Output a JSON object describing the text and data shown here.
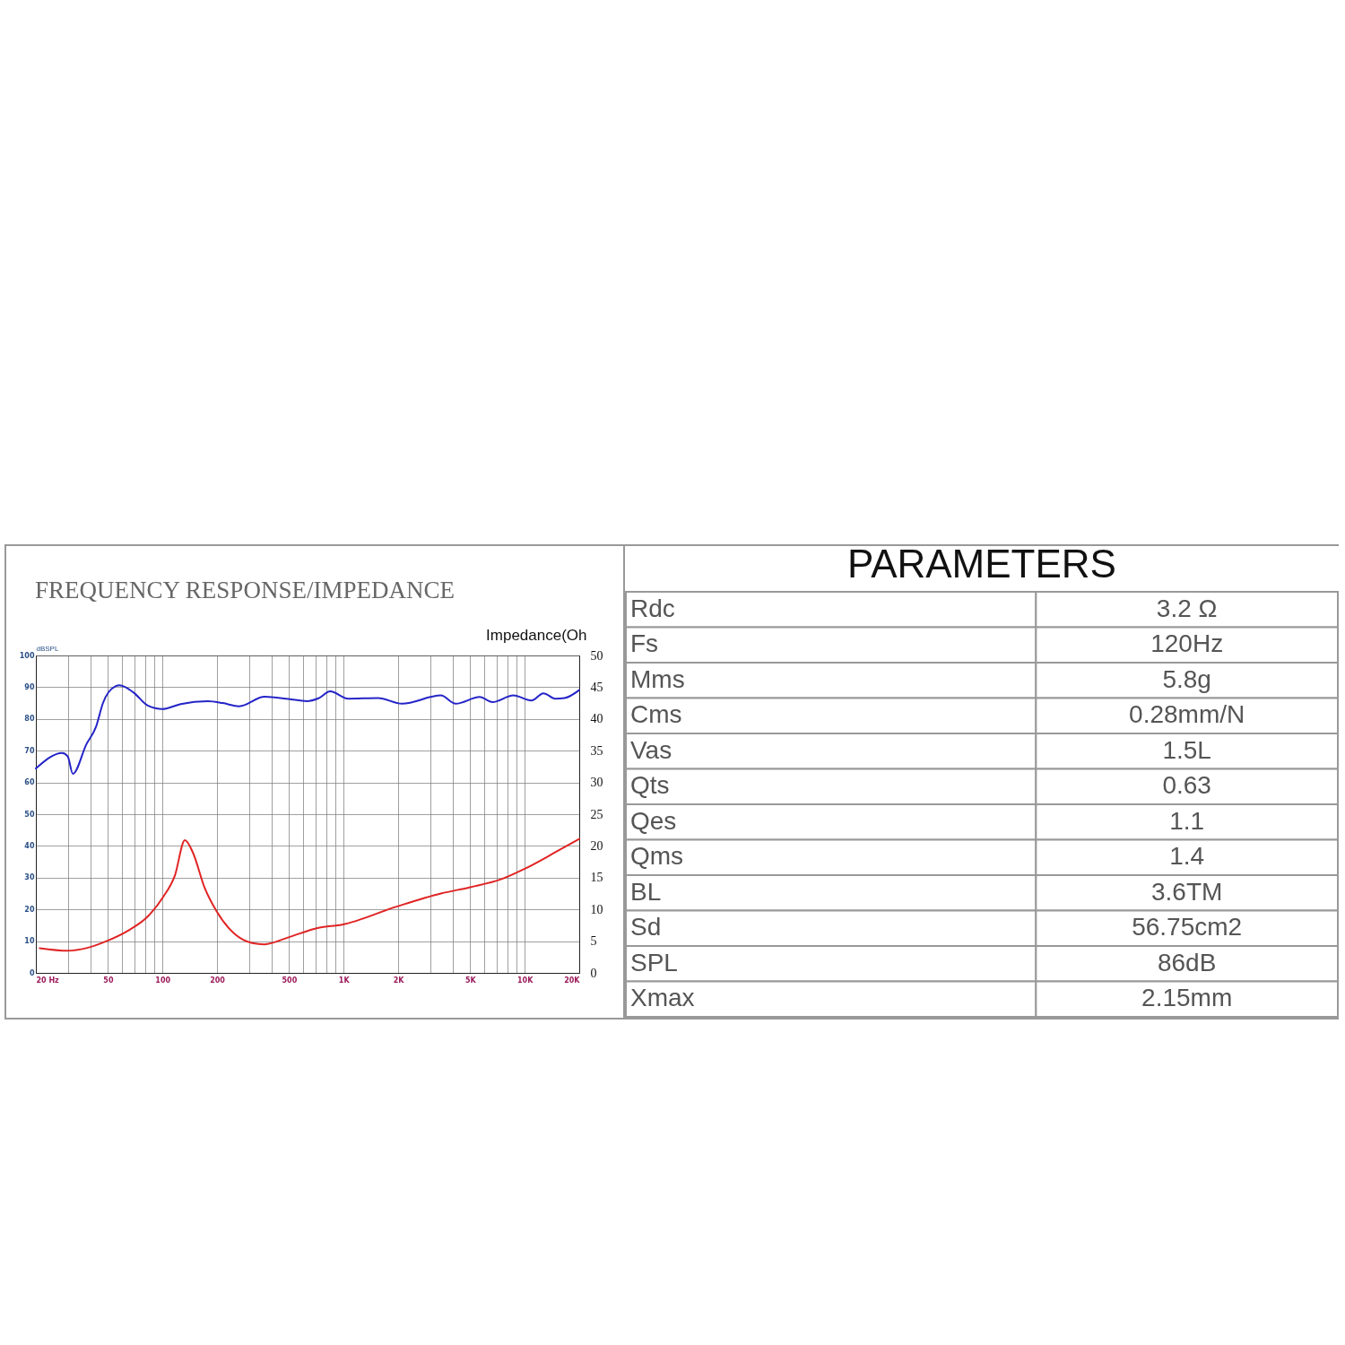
{
  "chart_data": [
    {
      "type": "line",
      "title": "FREQUENCY RESPONSE/IMPEDANCE",
      "ylabel": "dBSPL",
      "y2label": "Impedance(Oh",
      "log": "x",
      "grid": true,
      "xlim": [
        20,
        20000
      ],
      "ylim": [
        0,
        100
      ],
      "y2lim": [
        0,
        50
      ],
      "xticks": [
        {
          "value": 20,
          "label": "20  Hz"
        },
        {
          "value": 30,
          "label": null
        },
        {
          "value": 40,
          "label": null
        },
        50,
        {
          "value": 60,
          "label": null
        },
        {
          "value": 70,
          "label": null
        },
        {
          "value": 80,
          "label": null
        },
        {
          "value": 90,
          "label": null
        },
        100,
        200,
        {
          "value": 300,
          "label": null
        },
        {
          "value": 400,
          "label": null
        },
        500,
        {
          "value": 600,
          "label": null
        },
        {
          "value": 700,
          "label": null
        },
        {
          "value": 800,
          "label": null
        },
        {
          "value": 900,
          "label": null
        },
        {
          "value": 1000,
          "label": "1K"
        },
        {
          "value": 2000,
          "label": "2K"
        },
        {
          "value": 3000,
          "label": null
        },
        {
          "value": 4000,
          "label": null
        },
        {
          "value": 5000,
          "label": "5K"
        },
        {
          "value": 6000,
          "label": null
        },
        {
          "value": 7000,
          "label": null
        },
        {
          "value": 8000,
          "label": null
        },
        {
          "value": 9000,
          "label": null
        },
        {
          "value": 10000,
          "label": "10K"
        },
        {
          "value": 20000,
          "label": "20K"
        }
      ],
      "yticks": [
        0,
        10,
        20,
        30,
        40,
        50,
        60,
        70,
        80,
        90,
        100
      ],
      "y2ticks": [
        0,
        5,
        10,
        15,
        20,
        25,
        30,
        35,
        40,
        45,
        50
      ],
      "series": [
        {
          "color": "#2424c8",
          "x": [
            20,
            28,
            30,
            32,
            38,
            43,
            47,
            55,
            58,
            69,
            83,
            100,
            126,
            178,
            215,
            265,
            366,
            496,
            626,
            727,
            843,
            1060,
            1549,
            2100,
            3445,
            4160,
            5640,
            6630,
            8660,
            10890,
            12680,
            14760,
            16600,
            20000
          ],
          "values": [
            64.4,
            69.3,
            68.2,
            62.7,
            72,
            77.6,
            85.1,
            90.3,
            90.6,
            88.4,
            84.2,
            83.1,
            84.7,
            85.6,
            85,
            84,
            87,
            86.3,
            85.6,
            86.5,
            88.7,
            86.4,
            86.6,
            84.8,
            87.4,
            84.8,
            86.9,
            85.3,
            87.4,
            85.8,
            88.1,
            86.4,
            86.6,
            89.1
          ]
        },
        {
          "color": "#e02424",
          "axis": "y2",
          "x": [
            21,
            30,
            38,
            49,
            64,
            83,
            100,
            117,
            133,
            147,
            171,
            200,
            251,
            313,
            366,
            496,
            727,
            980,
            1940,
            3445,
            5000,
            7330,
            10000,
            14760,
            20000
          ],
          "values": [
            3.9,
            3.5,
            3.9,
            5,
            6.6,
            8.9,
            11.8,
            15.3,
            20.9,
            19,
            13.4,
            9.6,
            6.1,
            4.7,
            4.5,
            5.6,
            7.1,
            7.6,
            10.4,
            12.5,
            13.5,
            14.7,
            16.4,
            19,
            21.1
          ]
        }
      ]
    },
    {
      "type": "other",
      "title": "PARAMETERS",
      "categories": [
        "Rdc",
        "Fs",
        "Mms",
        "Cms",
        "Vas",
        "Qts",
        "Qes",
        "Qms",
        "BL",
        "Sd",
        "SPL",
        "Xmax"
      ],
      "value_labels": [
        "3.2 Ω",
        "120Hz",
        "5.8g",
        "0.28mm/N",
        "1.5L",
        "0.63",
        "1.1",
        "1.4",
        "3.6TM",
        "56.75cm2",
        "86dB",
        "2.15mm"
      ]
    }
  ]
}
